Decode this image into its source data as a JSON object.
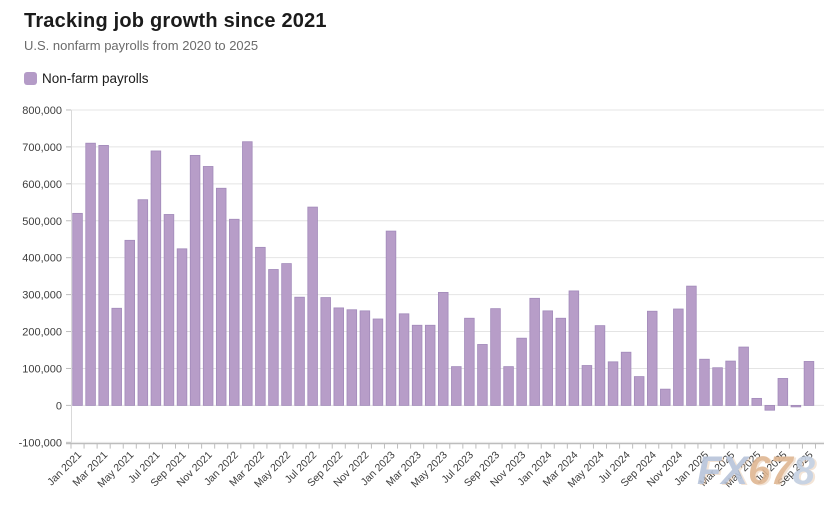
{
  "header": {
    "title": "Tracking job growth since 2021",
    "subtitle": "U.S. nonfarm payrolls from 2020 to 2025"
  },
  "legend": {
    "label": "Non-farm payrolls",
    "swatch_color": "#b49bc7"
  },
  "watermark": {
    "text": "FX678",
    "parts": [
      {
        "text": "FX",
        "color": "#b7c4da"
      },
      {
        "text": "67",
        "color": "#dfb692"
      },
      {
        "text": "8",
        "color": "#c3cfe0"
      }
    ]
  },
  "chart_data": {
    "type": "bar",
    "title": "Tracking job growth since 2021",
    "subtitle": "U.S. nonfarm payrolls from 2020 to 2025",
    "series_name": "Non-farm payrolls",
    "categories": [
      "Jan 2021",
      "Feb 2021",
      "Mar 2021",
      "Apr 2021",
      "May 2021",
      "Jun 2021",
      "Jul 2021",
      "Aug 2021",
      "Sep 2021",
      "Oct 2021",
      "Nov 2021",
      "Dec 2021",
      "Jan 2022",
      "Feb 2022",
      "Mar 2022",
      "Apr 2022",
      "May 2022",
      "Jun 2022",
      "Jul 2022",
      "Aug 2022",
      "Sep 2022",
      "Oct 2022",
      "Nov 2022",
      "Dec 2022",
      "Jan 2023",
      "Feb 2023",
      "Mar 2023",
      "Apr 2023",
      "May 2023",
      "Jun 2023",
      "Jul 2023",
      "Aug 2023",
      "Sep 2023",
      "Oct 2023",
      "Nov 2023",
      "Dec 2023",
      "Jan 2024",
      "Feb 2024",
      "Mar 2024",
      "Apr 2024",
      "May 2024",
      "Jun 2024",
      "Jul 2024",
      "Aug 2024",
      "Sep 2024",
      "Oct 2024",
      "Nov 2024",
      "Dec 2024",
      "Jan 2025",
      "Feb 2025",
      "Mar 2025",
      "Apr 2025",
      "May 2025",
      "Jun 2025",
      "Jul 2025",
      "Aug 2025",
      "Sep 2025"
    ],
    "values": [
      520000,
      710000,
      704000,
      263000,
      447000,
      557000,
      689000,
      517000,
      424000,
      677000,
      647000,
      588000,
      504000,
      714000,
      428000,
      368000,
      384000,
      293000,
      537000,
      292000,
      264000,
      259000,
      256000,
      234000,
      472000,
      248000,
      217000,
      217000,
      306000,
      105000,
      236000,
      165000,
      262000,
      105000,
      182000,
      290000,
      256000,
      236000,
      310000,
      108000,
      216000,
      118000,
      144000,
      78000,
      255000,
      44000,
      261000,
      323000,
      125000,
      102000,
      120000,
      158000,
      19000,
      -13000,
      73000,
      -4000,
      119000
    ],
    "x_tick_labels_shown": [
      "Jan 2021",
      "Mar 2021",
      "May 2021",
      "Jul 2021",
      "Sep 2021",
      "Nov 2021",
      "Jan 2022",
      "Mar 2022",
      "May 2022",
      "Jul 2022",
      "Sep 2022",
      "Nov 2022",
      "Jan 2023",
      "Mar 2023",
      "May 2023",
      "Jul 2023",
      "Sep 2023",
      "Nov 2023",
      "Jan 2024",
      "Mar 2024",
      "May 2024",
      "Jul 2024",
      "Sep 2024",
      "Nov 2024",
      "Jan 2025",
      "Mar 2025",
      "May 2025",
      "Jul 2025",
      "Sep 2025"
    ],
    "y_tick_labels": [
      "800,000",
      "700,000",
      "600,000",
      "500,000",
      "400,000",
      "300,000",
      "200,000",
      "100,000",
      "0",
      "-100,000"
    ],
    "ylim": [
      -100000,
      800000
    ],
    "y_step": 100000,
    "xlabel": "",
    "ylabel": "",
    "grid": true,
    "legend_position": "top-left",
    "bar_color": "#b79dc8",
    "bar_border_color": "#a28aba",
    "grid_color": "#e4e4e4",
    "axis_color": "#bdbdbd",
    "tick_label_color": "#3d3d3d"
  }
}
